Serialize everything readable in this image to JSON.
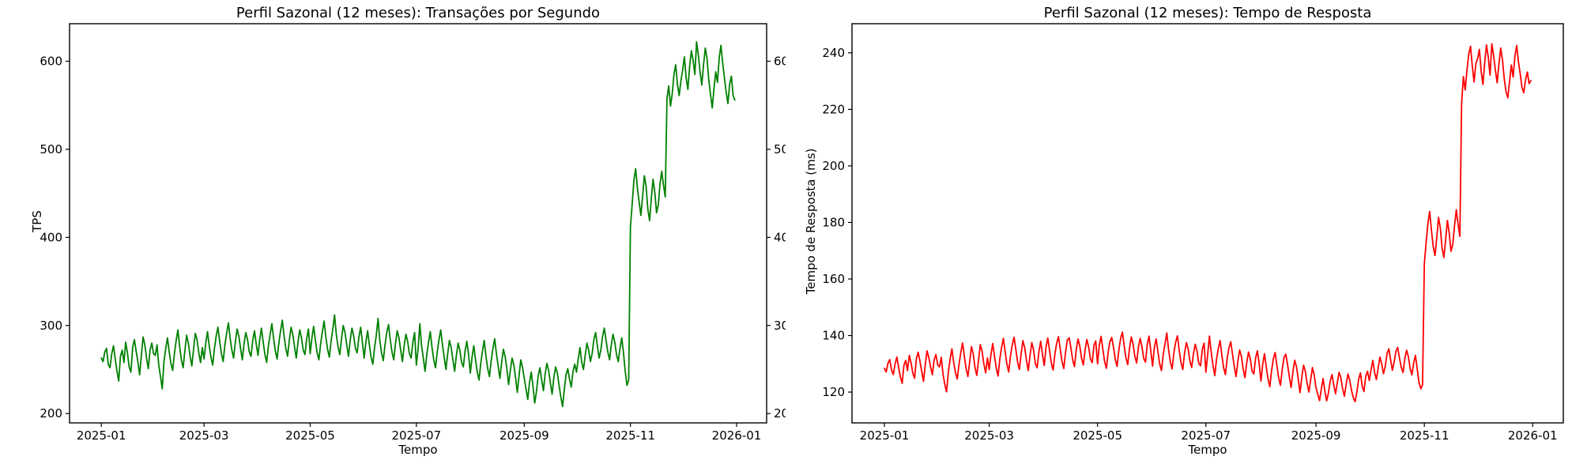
{
  "chart_data": [
    {
      "type": "line",
      "title": "Perfil Sazonal (12 meses): Transações por Segundo",
      "xlabel": "Tempo",
      "ylabel": "TPS",
      "line_color": "#008000",
      "x_start": "2025-01-01",
      "x_step_days": 1,
      "x_tick_labels": [
        "2025-01",
        "2025-03",
        "2025-05",
        "2025-07",
        "2025-09",
        "2025-11",
        "2026-01"
      ],
      "x_tick_days": [
        0,
        59,
        120,
        181,
        243,
        304,
        365
      ],
      "x_margin_days": 18.25,
      "y_ticks": [
        200,
        300,
        400,
        500,
        600
      ],
      "ylim": [
        189.4,
        642.6
      ],
      "mirror_y_axis_labels": true,
      "grid": false,
      "legend": null,
      "values": [
        263,
        259,
        270,
        274,
        256,
        252,
        268,
        277,
        262,
        248,
        237,
        265,
        272,
        258,
        281,
        269,
        253,
        247,
        275,
        284,
        271,
        259,
        244,
        266,
        287,
        278,
        263,
        251,
        272,
        280,
        268,
        266,
        278,
        255,
        242,
        228,
        259,
        274,
        286,
        270,
        257,
        249,
        268,
        283,
        295,
        276,
        261,
        252,
        271,
        289,
        280,
        265,
        254,
        273,
        291,
        284,
        269,
        258,
        275,
        262,
        280,
        293,
        277,
        264,
        255,
        274,
        288,
        298,
        282,
        268,
        259,
        278,
        291,
        303,
        286,
        272,
        263,
        281,
        296,
        288,
        274,
        261,
        279,
        292,
        284,
        270,
        265,
        283,
        294,
        279,
        266,
        284,
        297,
        281,
        267,
        258,
        277,
        290,
        302,
        285,
        271,
        262,
        280,
        294,
        306,
        288,
        274,
        265,
        283,
        298,
        290,
        276,
        263,
        281,
        295,
        286,
        272,
        267,
        285,
        296,
        268,
        286,
        299,
        283,
        269,
        261,
        279,
        293,
        305,
        287,
        273,
        264,
        282,
        296,
        312,
        290,
        276,
        267,
        285,
        300,
        292,
        278,
        265,
        283,
        297,
        288,
        274,
        269,
        287,
        298,
        281,
        263,
        281,
        294,
        278,
        264,
        256,
        275,
        289,
        308,
        283,
        269,
        260,
        278,
        292,
        301,
        284,
        270,
        261,
        279,
        294,
        286,
        272,
        259,
        277,
        290,
        282,
        268,
        263,
        281,
        292,
        255,
        273,
        302,
        277,
        263,
        248,
        267,
        281,
        293,
        275,
        261,
        252,
        270,
        284,
        295,
        278,
        264,
        250,
        268,
        283,
        275,
        261,
        248,
        266,
        280,
        272,
        258,
        253,
        271,
        282,
        267,
        246,
        264,
        277,
        261,
        247,
        238,
        257,
        271,
        283,
        265,
        251,
        242,
        260,
        274,
        285,
        268,
        254,
        240,
        258,
        273,
        265,
        251,
        233,
        249,
        263,
        255,
        241,
        224,
        243,
        261,
        252,
        240,
        228,
        216,
        235,
        247,
        231,
        212,
        225,
        243,
        252,
        238,
        226,
        245,
        257,
        249,
        235,
        222,
        241,
        253,
        246,
        232,
        219,
        208,
        227,
        244,
        251,
        239,
        230,
        248,
        256,
        247,
        262,
        275,
        258,
        250,
        266,
        280,
        272,
        259,
        268,
        284,
        292,
        277,
        263,
        272,
        288,
        297,
        283,
        270,
        261,
        278,
        290,
        281,
        267,
        259,
        274,
        286,
        269,
        248,
        232,
        238,
        412,
        438,
        465,
        478,
        456,
        440,
        425,
        447,
        470,
        458,
        432,
        419,
        444,
        466,
        451,
        428,
        437,
        461,
        475,
        459,
        446,
        558,
        572,
        549,
        563,
        585,
        596,
        574,
        561,
        578,
        590,
        605,
        581,
        568,
        594,
        612,
        601,
        585,
        622,
        607,
        588,
        573,
        596,
        615,
        603,
        579,
        562,
        547,
        569,
        588,
        576,
        604,
        618,
        598,
        581,
        565,
        552,
        574,
        583,
        561,
        556
      ]
    },
    {
      "type": "line",
      "title": "Perfil Sazonal (12 meses): Tempo de Resposta",
      "xlabel": "Tempo",
      "ylabel": "Tempo de Resposta (ms)",
      "line_color": "#ff0000",
      "x_start": "2025-01-01",
      "x_step_days": 1,
      "x_tick_labels": [
        "2025-01",
        "2025-03",
        "2025-05",
        "2025-07",
        "2025-09",
        "2025-11",
        "2026-01"
      ],
      "x_tick_days": [
        0,
        59,
        120,
        181,
        243,
        304,
        365
      ],
      "x_margin_days": 18.25,
      "y_ticks": [
        120,
        140,
        160,
        180,
        200,
        220,
        240
      ],
      "ylim": [
        109.1,
        250.3
      ],
      "mirror_y_axis_labels": false,
      "grid": false,
      "legend": null,
      "values": [
        128.4,
        127.1,
        130.2,
        131.5,
        127.8,
        126.2,
        129.9,
        132.4,
        128.8,
        125.3,
        123.1,
        129.5,
        131.2,
        127.6,
        133.0,
        130.4,
        126.7,
        124.9,
        131.8,
        134.1,
        130.9,
        127.4,
        123.8,
        129.6,
        134.6,
        132.2,
        128.9,
        126.1,
        131.4,
        133.3,
        129.7,
        128.9,
        132.3,
        126.4,
        122.7,
        120.1,
        127.2,
        131.6,
        135.3,
        130.5,
        127.0,
        124.6,
        129.8,
        133.9,
        137.4,
        132.8,
        128.3,
        125.5,
        130.7,
        136.1,
        133.5,
        128.7,
        125.9,
        131.3,
        136.8,
        134.4,
        130.0,
        126.8,
        132.1,
        127.9,
        133.4,
        137.2,
        132.6,
        128.5,
        125.7,
        131.8,
        135.9,
        139.0,
        134.2,
        129.8,
        127.1,
        132.9,
        136.7,
        139.4,
        135.1,
        130.6,
        128.0,
        133.7,
        138.2,
        135.6,
        131.2,
        127.6,
        133.0,
        137.5,
        134.8,
        130.1,
        128.6,
        134.3,
        138.0,
        133.2,
        129.4,
        136.0,
        139.1,
        134.6,
        130.2,
        127.8,
        133.5,
        137.3,
        139.6,
        135.2,
        130.9,
        128.3,
        134.1,
        138.4,
        139.2,
        135.7,
        131.4,
        129.0,
        134.8,
        138.8,
        136.3,
        132.0,
        129.6,
        135.0,
        138.6,
        135.9,
        131.7,
        130.4,
        136.5,
        138.1,
        130.0,
        136.6,
        139.7,
        135.1,
        130.8,
        128.4,
        134.2,
        137.9,
        139.3,
        135.8,
        131.5,
        129.1,
        134.9,
        138.9,
        141.2,
        136.4,
        132.1,
        129.7,
        135.5,
        139.5,
        137.0,
        132.7,
        130.3,
        135.7,
        139.0,
        136.1,
        131.9,
        130.6,
        136.8,
        139.8,
        134.4,
        129.2,
        135.8,
        138.8,
        134.3,
        130.0,
        127.6,
        133.4,
        137.1,
        140.9,
        135.0,
        130.7,
        128.2,
        134.0,
        137.7,
        139.9,
        134.7,
        130.4,
        128.0,
        133.8,
        137.5,
        135.3,
        131.0,
        128.7,
        133.6,
        136.9,
        134.5,
        130.2,
        129.3,
        135.1,
        137.3,
        127.0,
        133.2,
        139.8,
        134.1,
        129.4,
        125.8,
        131.6,
        135.4,
        138.2,
        133.0,
        128.6,
        126.2,
        131.9,
        135.7,
        137.8,
        133.4,
        129.0,
        125.5,
        130.8,
        134.9,
        132.6,
        128.2,
        125.1,
        130.4,
        134.2,
        131.7,
        127.5,
        126.4,
        132.0,
        134.6,
        130.1,
        123.9,
        129.8,
        133.6,
        128.9,
        124.7,
        121.9,
        127.6,
        131.8,
        134.0,
        129.3,
        125.0,
        122.4,
        128.0,
        132.2,
        133.4,
        129.7,
        125.4,
        121.6,
        127.1,
        131.3,
        129.0,
        124.6,
        119.8,
        125.2,
        129.5,
        127.3,
        123.1,
        120.0,
        124.3,
        128.7,
        126.0,
        121.6,
        119.2,
        117.0,
        121.1,
        124.8,
        120.3,
        116.9,
        119.7,
        123.9,
        126.2,
        122.5,
        119.4,
        123.3,
        127.0,
        125.1,
        121.2,
        118.5,
        122.8,
        126.4,
        124.2,
        120.6,
        118.1,
        116.6,
        119.9,
        124.5,
        126.8,
        122.1,
        120.2,
        125.6,
        127.4,
        124.1,
        127.9,
        131.2,
        127.0,
        124.4,
        128.5,
        132.4,
        130.0,
        126.5,
        129.1,
        133.6,
        135.3,
        131.5,
        127.7,
        130.6,
        134.4,
        135.8,
        132.0,
        128.8,
        126.9,
        131.8,
        134.8,
        132.6,
        128.4,
        126.1,
        130.3,
        133.0,
        128.1,
        123.5,
        121.2,
        122.6,
        165.4,
        172.8,
        179.6,
        183.9,
        177.2,
        171.5,
        168.3,
        174.6,
        181.8,
        178.0,
        170.9,
        167.6,
        173.9,
        180.7,
        176.3,
        169.8,
        172.2,
        178.8,
        184.5,
        179.4,
        175.1,
        222.4,
        231.6,
        226.9,
        233.8,
        239.5,
        242.3,
        235.4,
        229.7,
        236.2,
        237.9,
        241.2,
        233.5,
        228.8,
        236.6,
        242.8,
        238.4,
        232.1,
        243.2,
        239.0,
        233.9,
        229.4,
        236.0,
        241.7,
        237.5,
        230.8,
        226.3,
        224.1,
        229.9,
        235.7,
        231.4,
        238.8,
        242.6,
        236.8,
        232.5,
        227.7,
        225.9,
        230.5,
        233.2,
        229.1,
        230.2
      ]
    }
  ]
}
